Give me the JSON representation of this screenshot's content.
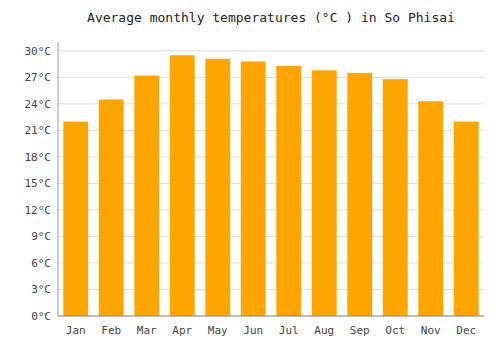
{
  "chart_data": {
    "type": "bar",
    "title": "Average monthly temperatures (°C ) in So Phisai",
    "categories": [
      "Jan",
      "Feb",
      "Mar",
      "Apr",
      "May",
      "Jun",
      "Jul",
      "Aug",
      "Sep",
      "Oct",
      "Nov",
      "Dec"
    ],
    "values": [
      22.0,
      24.5,
      27.2,
      29.5,
      29.1,
      28.8,
      28.3,
      27.8,
      27.5,
      26.8,
      24.3,
      22.0
    ],
    "color": "#FFA500",
    "ylim": [
      0,
      31
    ],
    "yticks": [
      {
        "value": 0,
        "label": "0°C"
      },
      {
        "value": 3,
        "label": "3°C"
      },
      {
        "value": 6,
        "label": "6°C"
      },
      {
        "value": 9,
        "label": "9°C"
      },
      {
        "value": 12,
        "label": "12°C"
      },
      {
        "value": 15,
        "label": "15°C"
      },
      {
        "value": 18,
        "label": "18°C"
      },
      {
        "value": 21,
        "label": "21°C"
      },
      {
        "value": 24,
        "label": "24°C"
      },
      {
        "value": 27,
        "label": "27°C"
      },
      {
        "value": 30,
        "label": "30°C"
      }
    ],
    "grid": true
  }
}
